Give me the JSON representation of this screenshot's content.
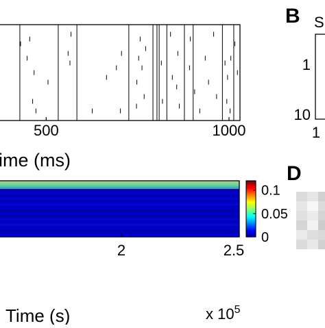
{
  "panel_labels": {
    "b": "B",
    "d": "D"
  },
  "panel_b": {
    "partial_text": "S",
    "ytick_top": "1",
    "ytick_bottom": "10",
    "xtick_left": "1"
  },
  "chart_data": [
    {
      "type": "scatter",
      "description_role": "spike-raster",
      "xlabel": "ime (ms)",
      "xticks": [
        500,
        1000
      ],
      "xtick_labels": [
        "500",
        "1000"
      ],
      "xlim": [
        370,
        1030
      ],
      "ylim": [
        0,
        20
      ],
      "full_height_events_x": [
        428,
        533,
        584,
        726,
        792,
        803,
        809,
        830,
        878,
        902,
        982,
        1013
      ],
      "short_events": [
        {
          "x": 430,
          "y": 16
        },
        {
          "x": 448,
          "y": 13
        },
        {
          "x": 455,
          "y": 17
        },
        {
          "x": 463,
          "y": 4
        },
        {
          "x": 467,
          "y": 10
        },
        {
          "x": 472,
          "y": 2
        },
        {
          "x": 505,
          "y": 8
        },
        {
          "x": 560,
          "y": 14
        },
        {
          "x": 565,
          "y": 12
        },
        {
          "x": 568,
          "y": 18
        },
        {
          "x": 626,
          "y": 2
        },
        {
          "x": 665,
          "y": 9
        },
        {
          "x": 692,
          "y": 11
        },
        {
          "x": 703,
          "y": 2
        },
        {
          "x": 706,
          "y": 14
        },
        {
          "x": 747,
          "y": 3
        },
        {
          "x": 748,
          "y": 8
        },
        {
          "x": 753,
          "y": 13
        },
        {
          "x": 757,
          "y": 17
        },
        {
          "x": 762,
          "y": 11
        },
        {
          "x": 768,
          "y": 5
        },
        {
          "x": 772,
          "y": 15
        },
        {
          "x": 815,
          "y": 12
        },
        {
          "x": 818,
          "y": 4
        },
        {
          "x": 840,
          "y": 18
        },
        {
          "x": 845,
          "y": 9
        },
        {
          "x": 857,
          "y": 7
        },
        {
          "x": 860,
          "y": 14
        },
        {
          "x": 864,
          "y": 3
        },
        {
          "x": 892,
          "y": 11
        },
        {
          "x": 894,
          "y": 17
        },
        {
          "x": 906,
          "y": 6
        },
        {
          "x": 920,
          "y": 2
        },
        {
          "x": 935,
          "y": 13
        },
        {
          "x": 944,
          "y": 8
        },
        {
          "x": 958,
          "y": 18
        },
        {
          "x": 966,
          "y": 5
        },
        {
          "x": 989,
          "y": 12
        },
        {
          "x": 994,
          "y": 4
        },
        {
          "x": 996,
          "y": 9
        },
        {
          "x": 1003,
          "y": 2
        },
        {
          "x": 1005,
          "y": 13
        },
        {
          "x": 1016,
          "y": 16
        },
        {
          "x": 1023,
          "y": 10
        }
      ]
    },
    {
      "type": "heatmap",
      "xlabel": "Time (s)",
      "xticks": [
        2,
        2.5
      ],
      "xtick_labels": [
        "2",
        "2.5"
      ],
      "xlim": [
        1.48,
        2.5
      ],
      "x_multiplier_text": "x 10",
      "x_multiplier_exponent": "5",
      "rows": 30,
      "colorbar": {
        "ticks": [
          0,
          0.05,
          0.1
        ],
        "tick_labels": [
          "0",
          "0.05",
          "0.1"
        ],
        "range": [
          0,
          0.12
        ],
        "colormap": "jet"
      },
      "value_bands": [
        {
          "rows": "top ~15% of rows",
          "level": 0.065
        },
        {
          "rows": "remaining rows",
          "level": 0.005
        }
      ]
    },
    {
      "type": "heatmap",
      "description_role": "grayscale matrix (panel D, partially visible)",
      "colormap": "gray",
      "cells": [
        [
          0.86,
          0.9,
          0.82
        ],
        [
          0.9,
          0.97,
          0.86
        ],
        [
          0.88,
          0.92,
          0.83
        ],
        [
          0.84,
          0.95,
          0.8
        ],
        [
          0.92,
          0.87,
          0.85
        ],
        [
          0.86,
          0.91,
          0.82
        ]
      ]
    }
  ]
}
